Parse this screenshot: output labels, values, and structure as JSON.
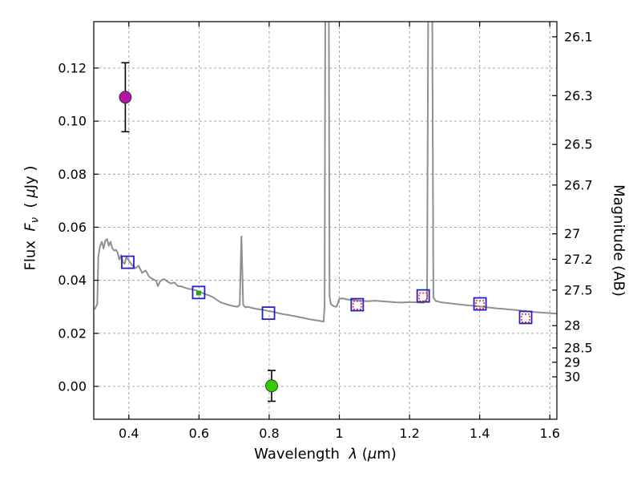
{
  "chart_data": {
    "type": "line+scatter",
    "title": "",
    "xlabel_parts": [
      {
        "t": "Wavelength  ",
        "i": false
      },
      {
        "t": "λ",
        "i": true
      },
      {
        "t": " (",
        "i": false
      },
      {
        "t": "μ",
        "i": true
      },
      {
        "t": "m)",
        "i": false
      }
    ],
    "ylabel_left_parts": [
      {
        "t": "Flux  ",
        "i": false
      },
      {
        "t": "F",
        "i": true
      },
      {
        "t": "ν",
        "i": true,
        "sub": true
      },
      {
        "t": "  ( ",
        "i": false
      },
      {
        "t": "μ",
        "i": true
      },
      {
        "t": "Jy )",
        "i": false
      }
    ],
    "ylabel_right": "Magnitude (AB)",
    "xlim": [
      0.3,
      1.62
    ],
    "ylim": [
      -0.0124,
      0.1375
    ],
    "grid": true,
    "x_ticks": [
      {
        "label": "0.4",
        "value": 0.4
      },
      {
        "label": "0.6",
        "value": 0.6
      },
      {
        "label": "0.8",
        "value": 0.8
      },
      {
        "label": "1",
        "value": 1.0
      },
      {
        "label": "1.2",
        "value": 1.2
      },
      {
        "label": "1.4",
        "value": 1.4
      },
      {
        "label": "1.6",
        "value": 1.6
      }
    ],
    "y_ticks_left": [
      {
        "label": "0.00",
        "value": 0.0
      },
      {
        "label": "0.02",
        "value": 0.02
      },
      {
        "label": "0.04",
        "value": 0.04
      },
      {
        "label": "0.06",
        "value": 0.06
      },
      {
        "label": "0.08",
        "value": 0.08
      },
      {
        "label": "0.10",
        "value": 0.1
      },
      {
        "label": "0.12",
        "value": 0.12
      }
    ],
    "y_ticks_right": [
      {
        "label": "26.1",
        "flux": 0.1318
      },
      {
        "label": "26.3",
        "flux": 0.1096
      },
      {
        "label": "26.5",
        "flux": 0.0912
      },
      {
        "label": "26.7",
        "flux": 0.0759
      },
      {
        "label": "27",
        "flux": 0.0575
      },
      {
        "label": "27.2",
        "flux": 0.0479
      },
      {
        "label": "27.5",
        "flux": 0.0363
      },
      {
        "label": "28",
        "flux": 0.0229
      },
      {
        "label": "28.5",
        "flux": 0.0145
      },
      {
        "label": "29",
        "flux": 0.0091
      },
      {
        "label": "30",
        "flux": 0.0036
      }
    ],
    "colors": {
      "spectrum": "#8f8f8f",
      "grid": "#9a9a9a",
      "frame": "#000000",
      "blue_square": "#2020c8",
      "red_square": "#e82020",
      "magenta_point": "#b414a8",
      "green_point": "#33cc00",
      "green_small": "#2e9e2e",
      "errorbar": "#000000"
    },
    "spectrum": [
      [
        0.303,
        0.029
      ],
      [
        0.306,
        0.03
      ],
      [
        0.31,
        0.031
      ],
      [
        0.313,
        0.049
      ],
      [
        0.318,
        0.053
      ],
      [
        0.323,
        0.0545
      ],
      [
        0.328,
        0.052
      ],
      [
        0.333,
        0.055
      ],
      [
        0.338,
        0.0555
      ],
      [
        0.343,
        0.053
      ],
      [
        0.348,
        0.0545
      ],
      [
        0.353,
        0.052
      ],
      [
        0.358,
        0.0512
      ],
      [
        0.363,
        0.0515
      ],
      [
        0.368,
        0.0505
      ],
      [
        0.373,
        0.0478
      ],
      [
        0.378,
        0.0495
      ],
      [
        0.383,
        0.0468
      ],
      [
        0.388,
        0.0462
      ],
      [
        0.393,
        0.0488
      ],
      [
        0.398,
        0.0478
      ],
      [
        0.408,
        0.046
      ],
      [
        0.418,
        0.0445
      ],
      [
        0.428,
        0.0455
      ],
      [
        0.438,
        0.0428
      ],
      [
        0.448,
        0.0437
      ],
      [
        0.458,
        0.0413
      ],
      [
        0.468,
        0.0405
      ],
      [
        0.478,
        0.0398
      ],
      [
        0.483,
        0.0378
      ],
      [
        0.49,
        0.0398
      ],
      [
        0.5,
        0.0405
      ],
      [
        0.51,
        0.0395
      ],
      [
        0.52,
        0.0388
      ],
      [
        0.53,
        0.0392
      ],
      [
        0.54,
        0.0378
      ],
      [
        0.55,
        0.0377
      ],
      [
        0.56,
        0.0372
      ],
      [
        0.57,
        0.0368
      ],
      [
        0.58,
        0.0366
      ],
      [
        0.59,
        0.0362
      ],
      [
        0.6,
        0.0358
      ],
      [
        0.61,
        0.0352
      ],
      [
        0.62,
        0.0347
      ],
      [
        0.63,
        0.0342
      ],
      [
        0.64,
        0.0336
      ],
      [
        0.65,
        0.0327
      ],
      [
        0.66,
        0.0318
      ],
      [
        0.67,
        0.0313
      ],
      [
        0.68,
        0.0309
      ],
      [
        0.69,
        0.0305
      ],
      [
        0.7,
        0.0302
      ],
      [
        0.71,
        0.03
      ],
      [
        0.716,
        0.0308
      ],
      [
        0.721,
        0.0565
      ],
      [
        0.726,
        0.0308
      ],
      [
        0.732,
        0.0298
      ],
      [
        0.74,
        0.03
      ],
      [
        0.75,
        0.0296
      ],
      [
        0.76,
        0.0293
      ],
      [
        0.77,
        0.0291
      ],
      [
        0.78,
        0.0289
      ],
      [
        0.79,
        0.0286
      ],
      [
        0.8,
        0.0284
      ],
      [
        0.815,
        0.028
      ],
      [
        0.83,
        0.0275
      ],
      [
        0.845,
        0.0271
      ],
      [
        0.86,
        0.0268
      ],
      [
        0.875,
        0.0264
      ],
      [
        0.89,
        0.026
      ],
      [
        0.905,
        0.0256
      ],
      [
        0.92,
        0.0252
      ],
      [
        0.935,
        0.0249
      ],
      [
        0.948,
        0.0246
      ],
      [
        0.955,
        0.0244
      ],
      [
        0.958,
        0.03
      ],
      [
        0.961,
        0.2
      ],
      [
        0.965,
        0.21
      ],
      [
        0.969,
        0.2
      ],
      [
        0.972,
        0.034
      ],
      [
        0.976,
        0.031
      ],
      [
        0.984,
        0.0302
      ],
      [
        0.992,
        0.03
      ],
      [
        1.0,
        0.033
      ],
      [
        1.01,
        0.0332
      ],
      [
        1.02,
        0.0328
      ],
      [
        1.04,
        0.0325
      ],
      [
        1.06,
        0.0323
      ],
      [
        1.08,
        0.0321
      ],
      [
        1.1,
        0.0323
      ],
      [
        1.12,
        0.0321
      ],
      [
        1.14,
        0.0319
      ],
      [
        1.16,
        0.0317
      ],
      [
        1.18,
        0.0316
      ],
      [
        1.2,
        0.0318
      ],
      [
        1.22,
        0.0317
      ],
      [
        1.24,
        0.0315
      ],
      [
        1.25,
        0.033
      ],
      [
        1.255,
        0.2
      ],
      [
        1.259,
        0.21
      ],
      [
        1.263,
        0.2
      ],
      [
        1.268,
        0.0335
      ],
      [
        1.275,
        0.0322
      ],
      [
        1.29,
        0.0317
      ],
      [
        1.31,
        0.0314
      ],
      [
        1.33,
        0.0311
      ],
      [
        1.35,
        0.0308
      ],
      [
        1.37,
        0.0305
      ],
      [
        1.39,
        0.0303
      ],
      [
        1.41,
        0.03
      ],
      [
        1.43,
        0.0297
      ],
      [
        1.45,
        0.0294
      ],
      [
        1.47,
        0.0292
      ],
      [
        1.49,
        0.0289
      ],
      [
        1.51,
        0.0287
      ],
      [
        1.53,
        0.0284
      ],
      [
        1.55,
        0.0281
      ],
      [
        1.57,
        0.0279
      ],
      [
        1.59,
        0.0277
      ],
      [
        1.61,
        0.0275
      ],
      [
        1.62,
        0.0274
      ]
    ],
    "blue_squares": [
      [
        0.397,
        0.0468
      ],
      [
        0.599,
        0.0354
      ],
      [
        0.798,
        0.0276
      ],
      [
        1.051,
        0.0308
      ],
      [
        1.239,
        0.0341
      ],
      [
        1.401,
        0.0311
      ],
      [
        1.531,
        0.026
      ]
    ],
    "red_squares": [
      [
        1.051,
        0.0306
      ],
      [
        1.239,
        0.0337
      ],
      [
        1.401,
        0.0308
      ],
      [
        1.531,
        0.0257
      ]
    ],
    "green_marker": {
      "x": 0.599,
      "y": 0.0352
    },
    "error_points": [
      {
        "name": "magenta-point",
        "x": 0.39,
        "y": 0.109,
        "yerr": 0.013,
        "colorKey": "magenta_point"
      },
      {
        "name": "green-point",
        "x": 0.807,
        "y": 0.0002,
        "yerr": 0.0058,
        "colorKey": "green_point"
      }
    ]
  }
}
